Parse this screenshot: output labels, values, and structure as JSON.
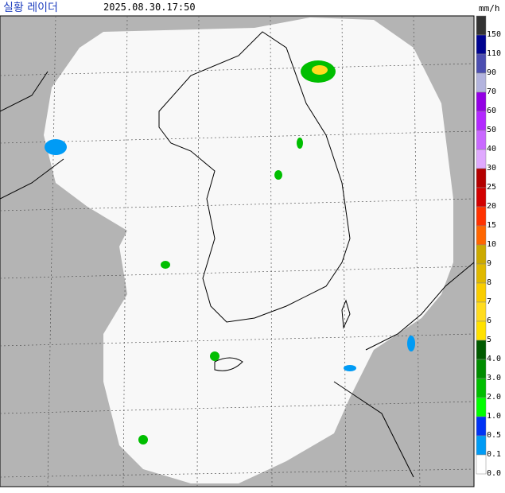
{
  "header": {
    "title": "실황 레이더",
    "time": "2025.08.30.17:50",
    "unit": "mm/h"
  },
  "legend": [
    {
      "label": "150",
      "color": "#333333"
    },
    {
      "label": "110",
      "color": "#000390"
    },
    {
      "label": "90",
      "color": "#4c4eb1"
    },
    {
      "label": "70",
      "color": "#b3b4de"
    },
    {
      "label": "60",
      "color": "#9300e4"
    },
    {
      "label": "50",
      "color": "#b329ff"
    },
    {
      "label": "40",
      "color": "#c969ff"
    },
    {
      "label": "30",
      "color": "#e0a9ff"
    },
    {
      "label": "25",
      "color": "#b40000"
    },
    {
      "label": "20",
      "color": "#d20000"
    },
    {
      "label": "15",
      "color": "#ff3200"
    },
    {
      "label": "10",
      "color": "#ff6600"
    },
    {
      "label": "9",
      "color": "#ccaa00"
    },
    {
      "label": "8",
      "color": "#e0b900"
    },
    {
      "label": "7",
      "color": "#f9cd00"
    },
    {
      "label": "6",
      "color": "#ffdc1f"
    },
    {
      "label": "5",
      "color": "#ffe100"
    },
    {
      "label": "4.0",
      "color": "#005a00"
    },
    {
      "label": "3.0",
      "color": "#008c00"
    },
    {
      "label": "2.0",
      "color": "#00be00"
    },
    {
      "label": "1.0",
      "color": "#00ff00"
    },
    {
      "label": "0.5",
      "color": "#0033f5"
    },
    {
      "label": "0.1",
      "color": "#009bf5"
    },
    {
      "label": "0.0",
      "color": "#ffffff"
    }
  ]
}
